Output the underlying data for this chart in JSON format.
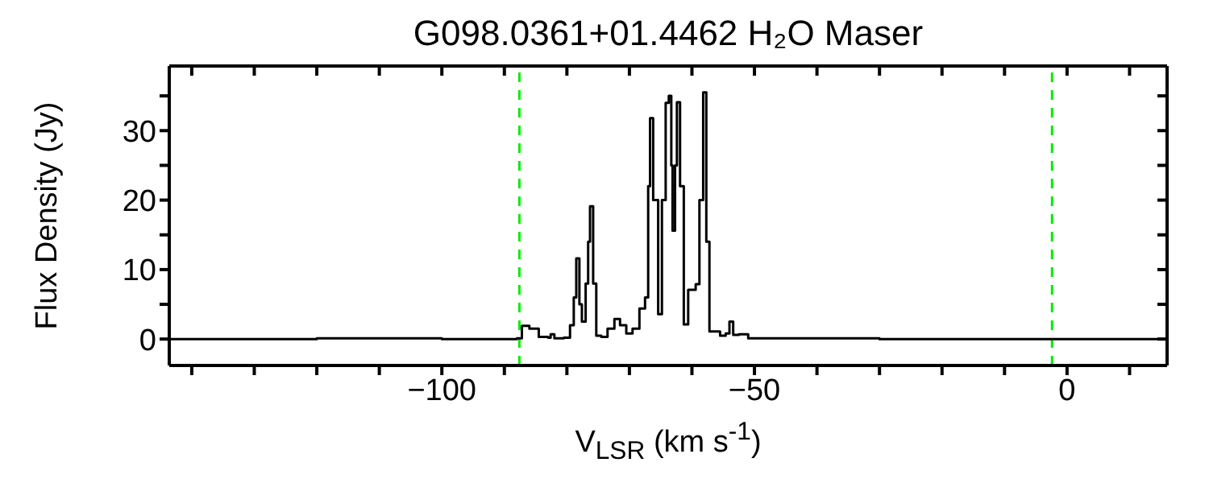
{
  "chart_data": {
    "type": "step",
    "title": "G098.0361+01.4462 H₂O Maser",
    "xlabel": "V$_{LSR}$ (km s$^{-1}$)",
    "ylabel": "Flux Density (Jy)",
    "x": [
      -143.6,
      -120,
      -100,
      -90,
      -88,
      -87.2,
      -86,
      -84.5,
      -83,
      -82.6,
      -82,
      -80.5,
      -79.5,
      -78.9,
      -78.5,
      -78,
      -77.6,
      -77,
      -76.6,
      -76.3,
      -75.8,
      -75.3,
      -74.5,
      -73.5,
      -72.4,
      -71.5,
      -70.5,
      -69.5,
      -68.4,
      -67.5,
      -67,
      -66.7,
      -66.2,
      -65.4,
      -64.8,
      -64.2,
      -63.7,
      -63.3,
      -63.1,
      -62.7,
      -62.4,
      -61.9,
      -61.3,
      -60.6,
      -59.4,
      -58.8,
      -58.2,
      -57.7,
      -57.2,
      -55.5,
      -54.6,
      -54,
      -53.4,
      -52.5,
      -51,
      -30,
      0,
      16
    ],
    "series": [
      {
        "color": "#000000",
        "values": [
          0,
          0.1,
          0,
          0,
          0.1,
          1.9,
          1.5,
          0.3,
          0.2,
          0.7,
          0.1,
          0.2,
          2,
          6,
          11.6,
          5,
          2.5,
          8,
          14,
          19.1,
          8,
          0.5,
          0.3,
          1.5,
          2.9,
          2,
          0.8,
          1.5,
          4.4,
          6,
          22,
          31.8,
          20,
          3.6,
          20,
          34,
          35,
          25,
          15.6,
          25,
          34.1,
          22,
          2.1,
          7.1,
          7.9,
          20,
          35.5,
          14,
          1.1,
          0.5,
          0.8,
          2.5,
          0.6,
          0.7,
          0.1,
          0,
          0,
          0
        ]
      }
    ],
    "xlim": [
      -143.6,
      16
    ],
    "ylim": [
      -3.8,
      39.3
    ],
    "xticks": [
      {
        "value": -140,
        "label": null
      },
      {
        "value": -130,
        "label": null
      },
      {
        "value": -120,
        "label": null
      },
      {
        "value": -110,
        "label": null
      },
      {
        "value": -100,
        "label": "−100"
      },
      {
        "value": -90,
        "label": null
      },
      {
        "value": -80,
        "label": null
      },
      {
        "value": -70,
        "label": null
      },
      {
        "value": -60,
        "label": null
      },
      {
        "value": -50,
        "label": "−50"
      },
      {
        "value": -40,
        "label": null
      },
      {
        "value": -30,
        "label": null
      },
      {
        "value": -20,
        "label": null
      },
      {
        "value": -10,
        "label": null
      },
      {
        "value": 0,
        "label": "0"
      },
      {
        "value": 10,
        "label": null
      }
    ],
    "yticks": [
      0,
      {
        "value": 5,
        "label": null
      },
      10,
      {
        "value": 15,
        "label": null
      },
      20,
      {
        "value": 25,
        "label": null
      },
      30,
      {
        "value": 35,
        "label": null
      }
    ],
    "ref_lines": [
      {
        "axis": "x",
        "value": -87.6,
        "color": "#00ee00",
        "line_style": "dashed"
      },
      {
        "axis": "x",
        "value": -2.4,
        "color": "#00ee00",
        "line_style": "dashed"
      }
    ],
    "grid": false
  }
}
